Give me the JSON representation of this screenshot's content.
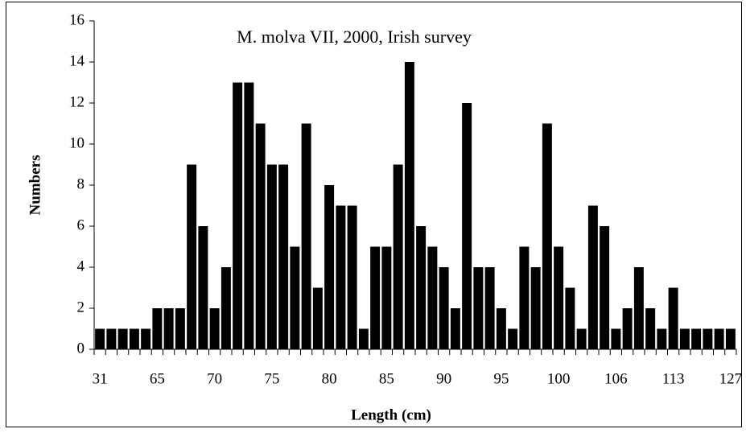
{
  "chart_data": {
    "type": "bar",
    "title": "M. molva VII, 2000, Irish survey",
    "x_label": "Length (cm)",
    "y_label": "Numbers",
    "categories": [
      "31",
      null,
      null,
      null,
      null,
      "65",
      null,
      null,
      null,
      null,
      "70",
      null,
      null,
      null,
      null,
      "75",
      null,
      null,
      null,
      null,
      "80",
      null,
      null,
      null,
      null,
      "85",
      null,
      null,
      null,
      null,
      "90",
      null,
      null,
      null,
      null,
      "95",
      null,
      null,
      null,
      null,
      "100",
      null,
      null,
      null,
      null,
      "106",
      null,
      null,
      null,
      null,
      "113",
      null,
      null,
      null,
      null,
      "127"
    ],
    "values": [
      1,
      1,
      1,
      1,
      1,
      2,
      2,
      2,
      9,
      6,
      2,
      4,
      13,
      13,
      11,
      9,
      9,
      5,
      11,
      3,
      8,
      7,
      7,
      1,
      5,
      5,
      9,
      14,
      6,
      5,
      4,
      2,
      12,
      4,
      4,
      2,
      1,
      5,
      4,
      11,
      5,
      3,
      1,
      7,
      6,
      1,
      2,
      4,
      2,
      1,
      3,
      1,
      1,
      1,
      1,
      1
    ],
    "color": "#000000",
    "ylim": [
      0,
      16
    ],
    "yticks": [
      0,
      2,
      4,
      6,
      8,
      10,
      12,
      14,
      16
    ],
    "grid": false
  }
}
